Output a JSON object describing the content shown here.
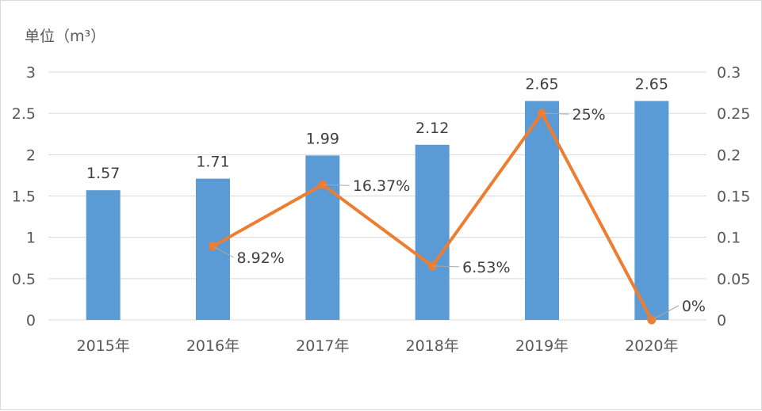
{
  "chart_data": {
    "type": "bar",
    "title": "",
    "unit_label": "单位（m³）",
    "categories": [
      "2015年",
      "2016年",
      "2017年",
      "2018年",
      "2019年",
      "2020年"
    ],
    "series": [
      {
        "type": "bar",
        "axis": "left",
        "values": [
          1.57,
          1.71,
          1.99,
          2.12,
          2.65,
          2.65
        ],
        "labels": [
          "1.57",
          "1.71",
          "1.99",
          "2.12",
          "2.65",
          "2.65"
        ],
        "color": "#5b9bd5"
      },
      {
        "type": "line",
        "axis": "right",
        "values": [
          null,
          0.0892,
          0.1637,
          0.0653,
          0.25,
          0
        ],
        "labels": [
          "",
          "8.92%",
          "16.37%",
          "6.53%",
          "25%",
          "0%"
        ],
        "color": "#ed7d31"
      }
    ],
    "y_left": {
      "ticks": [
        "0",
        "0.5",
        "1",
        "1.5",
        "2",
        "2.5",
        "3"
      ],
      "ylim": [
        0,
        3
      ]
    },
    "y_right": {
      "ticks": [
        "0",
        "0.05",
        "0.1",
        "0.15",
        "0.2",
        "0.25",
        "0.3"
      ],
      "ylim": [
        0,
        0.3
      ]
    },
    "gridlines": true,
    "legend": "none",
    "gridline_color": "#d9d9d9",
    "text_color": "#595959"
  }
}
